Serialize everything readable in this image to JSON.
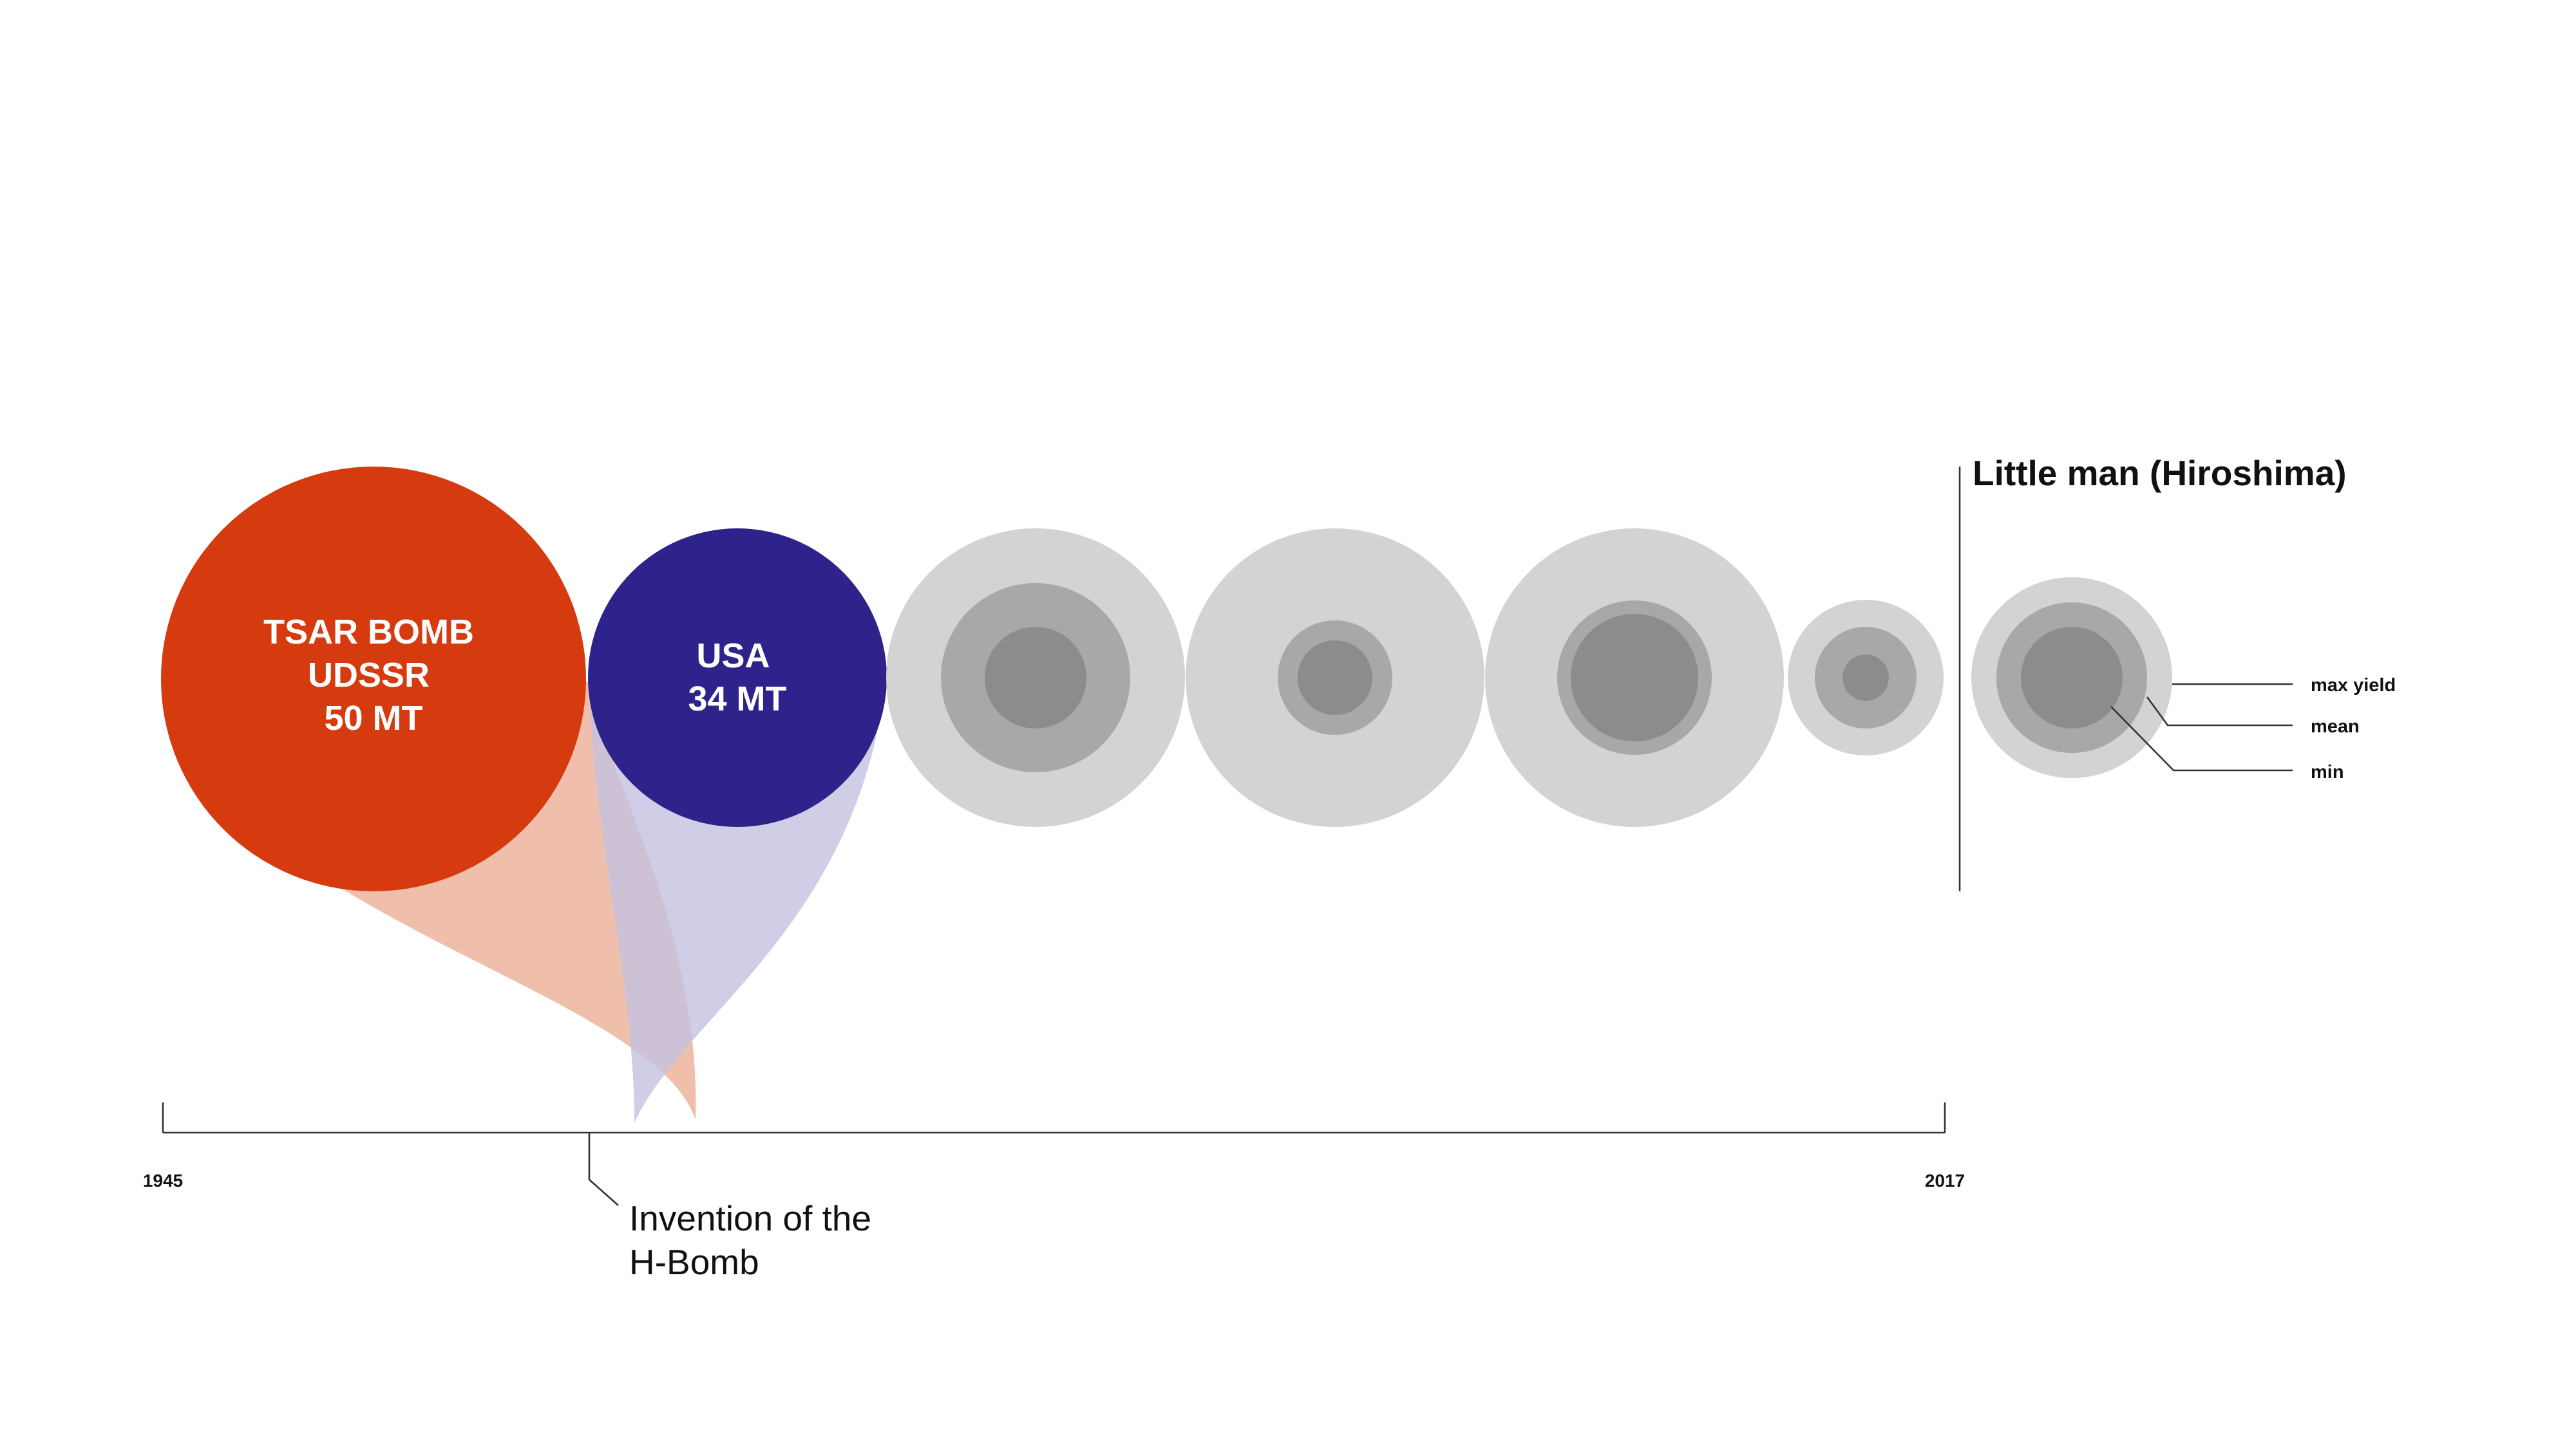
{
  "timeline": {
    "start_year": "1945",
    "end_year": "2017",
    "annotation_line1": "Invention of the",
    "annotation_line2": "H-Bomb"
  },
  "bombs": [
    {
      "label_lines": [
        "TSAR BOMB",
        "UDSSR",
        "50 MT"
      ],
      "color": "#d63a0f",
      "tail_color": "#efbfac"
    },
    {
      "label_lines": [
        "USA",
        "34 MT"
      ],
      "color": "#2e228b",
      "tail_color": "#c3c2e0"
    }
  ],
  "yield_groups": [
    {
      "max_color": "#d3d3d3",
      "mean_color": "#a8a8a8",
      "min_color": "#8c8c8c"
    },
    {
      "max_color": "#d3d3d3",
      "mean_color": "#a8a8a8",
      "min_color": "#8c8c8c"
    },
    {
      "max_color": "#d3d3d3",
      "mean_color": "#a8a8a8",
      "min_color": "#8c8c8c"
    },
    {
      "max_color": "#d3d3d3",
      "mean_color": "#a8a8a8",
      "min_color": "#8c8c8c"
    }
  ],
  "reference": {
    "title": "Little man (Hiroshima)"
  },
  "legend": {
    "max_label": "max yield",
    "mean_label": "mean",
    "min_label": "min"
  }
}
